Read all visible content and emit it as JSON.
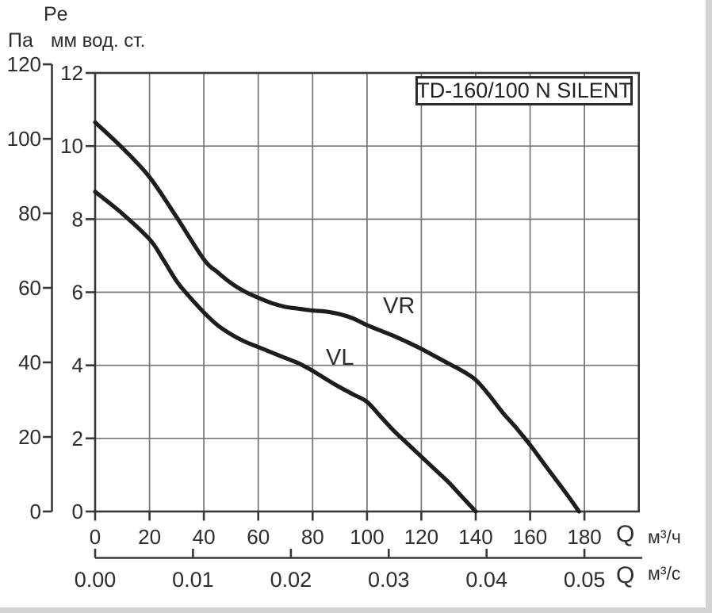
{
  "header": {
    "pe": "Pe",
    "pa": "Па",
    "mm": "мм вод. ст."
  },
  "chart_data": {
    "type": "line",
    "title": "TD-160/100 N SILENT",
    "grid": true,
    "legend_position": "inline-curve-labels",
    "pressure_axes": [
      {
        "name": "pascal",
        "unit": "Па",
        "ticks": [
          0,
          20,
          40,
          60,
          80,
          100,
          120
        ],
        "range": [
          0,
          120
        ]
      },
      {
        "name": "mm-water-column",
        "unit": "мм вод. ст.",
        "label": "Pe",
        "ticks": [
          0,
          2,
          4,
          6,
          8,
          10,
          12
        ],
        "range": [
          0,
          12
        ]
      }
    ],
    "flow_axes": [
      {
        "name": "m3-per-hour",
        "symbol": "Q",
        "unit": "м³/ч",
        "ticks": [
          0,
          20,
          40,
          60,
          80,
          100,
          120,
          140,
          160,
          180
        ],
        "range": [
          0,
          200
        ]
      },
      {
        "name": "m3-per-second",
        "symbol": "Q",
        "unit": "м³/с",
        "ticks": [
          "0.00",
          "0.01",
          "0.02",
          "0.03",
          "0.04",
          "0.05"
        ],
        "range": [
          0,
          0.055
        ]
      }
    ],
    "series": [
      {
        "name": "VR",
        "units": {
          "x": "м³/ч",
          "y": "мм вод. ст."
        },
        "points": [
          [
            0,
            10.65
          ],
          [
            10,
            9.95
          ],
          [
            20,
            9.15
          ],
          [
            30,
            8.05
          ],
          [
            40,
            6.9
          ],
          [
            45,
            6.55
          ],
          [
            50,
            6.25
          ],
          [
            55,
            6.02
          ],
          [
            60,
            5.85
          ],
          [
            65,
            5.7
          ],
          [
            70,
            5.6
          ],
          [
            75,
            5.55
          ],
          [
            80,
            5.5
          ],
          [
            85,
            5.47
          ],
          [
            90,
            5.4
          ],
          [
            95,
            5.28
          ],
          [
            100,
            5.1
          ],
          [
            105,
            4.95
          ],
          [
            110,
            4.8
          ],
          [
            115,
            4.63
          ],
          [
            120,
            4.45
          ],
          [
            125,
            4.25
          ],
          [
            130,
            4.05
          ],
          [
            135,
            3.85
          ],
          [
            140,
            3.6
          ],
          [
            145,
            3.18
          ],
          [
            150,
            2.7
          ],
          [
            155,
            2.28
          ],
          [
            160,
            1.82
          ],
          [
            165,
            1.32
          ],
          [
            170,
            0.82
          ],
          [
            174,
            0.42
          ],
          [
            178,
            0
          ]
        ]
      },
      {
        "name": "VL",
        "units": {
          "x": "м³/ч",
          "y": "мм вод. ст."
        },
        "points": [
          [
            0,
            8.75
          ],
          [
            10,
            8.15
          ],
          [
            20,
            7.45
          ],
          [
            25,
            6.9
          ],
          [
            30,
            6.3
          ],
          [
            35,
            5.85
          ],
          [
            40,
            5.45
          ],
          [
            45,
            5.1
          ],
          [
            50,
            4.85
          ],
          [
            55,
            4.65
          ],
          [
            60,
            4.5
          ],
          [
            65,
            4.35
          ],
          [
            70,
            4.2
          ],
          [
            75,
            4.05
          ],
          [
            80,
            3.85
          ],
          [
            85,
            3.62
          ],
          [
            90,
            3.4
          ],
          [
            95,
            3.2
          ],
          [
            100,
            3.0
          ],
          [
            105,
            2.6
          ],
          [
            110,
            2.2
          ],
          [
            115,
            1.85
          ],
          [
            120,
            1.5
          ],
          [
            125,
            1.15
          ],
          [
            130,
            0.8
          ],
          [
            135,
            0.4
          ],
          [
            140,
            0
          ]
        ]
      }
    ],
    "colors": {
      "curve": "#1d1d1d",
      "grid": "#757575",
      "axis": "#383838",
      "text": "#2d2d2d"
    }
  }
}
